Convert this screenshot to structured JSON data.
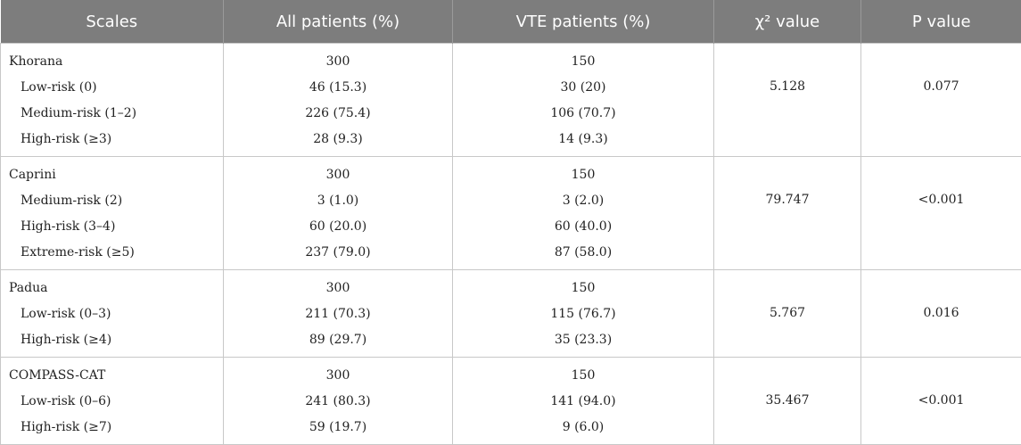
{
  "table": {
    "headers": [
      "Scales",
      "All patients (%)",
      "VTE patients (%)",
      "χ² value",
      "P value"
    ],
    "groups": [
      {
        "scale": "Khorana",
        "all_total": "300",
        "vte_total": "150",
        "chi2": "5.128",
        "p": "0.077",
        "rows": [
          {
            "label": "Low-risk (0)",
            "all": "46 (15.3)",
            "vte": "30 (20)"
          },
          {
            "label": "Medium-risk (1–2)",
            "all": "226 (75.4)",
            "vte": "106 (70.7)"
          },
          {
            "label": "High-risk (≥3)",
            "all": "28 (9.3)",
            "vte": "14 (9.3)"
          }
        ]
      },
      {
        "scale": "Caprini",
        "all_total": "300",
        "vte_total": "150",
        "chi2": "79.747",
        "p": "<0.001",
        "rows": [
          {
            "label": "Medium-risk (2)",
            "all": "3 (1.0)",
            "vte": "3 (2.0)"
          },
          {
            "label": "High-risk (3–4)",
            "all": "60 (20.0)",
            "vte": "60 (40.0)"
          },
          {
            "label": "Extreme-risk (≥5)",
            "all": "237 (79.0)",
            "vte": "87 (58.0)"
          }
        ]
      },
      {
        "scale": "Padua",
        "all_total": "300",
        "vte_total": "150",
        "chi2": "5.767",
        "p": "0.016",
        "rows": [
          {
            "label": "Low-risk (0–3)",
            "all": "211 (70.3)",
            "vte": "115 (76.7)"
          },
          {
            "label": "High-risk (≥4)",
            "all": "89 (29.7)",
            "vte": "35 (23.3)"
          }
        ]
      },
      {
        "scale": "COMPASS-CAT",
        "all_total": "300",
        "vte_total": "150",
        "chi2": "35.467",
        "p": "<0.001",
        "rows": [
          {
            "label": "Low-risk (0–6)",
            "all": "241 (80.3)",
            "vte": "141 (94.0)"
          },
          {
            "label": "High-risk (≥7)",
            "all": "59 (19.7)",
            "vte": "9 (6.0)"
          }
        ]
      }
    ]
  }
}
